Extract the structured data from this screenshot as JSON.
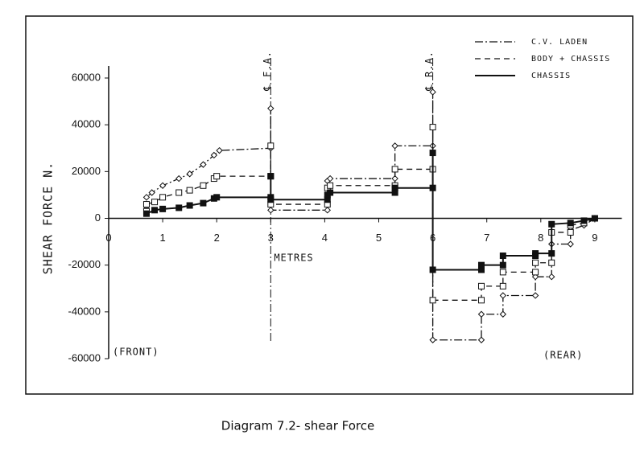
{
  "chart_data": {
    "type": "line",
    "title": "Diagram 7.2- shear Force",
    "xlabel": "METRES",
    "ylabel": "SHEAR FORCE N.",
    "annotations": [
      "℄ F.A.",
      "℄ R.A.",
      "(FRONT)",
      "(REAR)"
    ],
    "xlim": [
      0,
      9.5
    ],
    "ylim": [
      -60000,
      60000
    ],
    "xticks": [
      0,
      1,
      2,
      3,
      4,
      5,
      6,
      7,
      8,
      9
    ],
    "yticks": [
      -60000,
      -40000,
      -20000,
      0,
      20000,
      40000,
      60000
    ],
    "legend": "upper right",
    "series": [
      {
        "name": "C.V. LADEN",
        "color": "#111111",
        "dash": "dash-dot",
        "marker": "diamond",
        "x": [
          0.7,
          0.7,
          0.8,
          1.0,
          1.3,
          1.5,
          1.75,
          1.95,
          2.05,
          3.0,
          3.0,
          3.0,
          4.05,
          4.05,
          4.1,
          5.3,
          5.3,
          6.0,
          6.0,
          6.0,
          6.9,
          6.9,
          7.3,
          7.3,
          7.9,
          7.9,
          8.2,
          8.2,
          8.55,
          8.55,
          8.8,
          9.0
        ],
        "values": [
          4000,
          9000,
          11000,
          14000,
          17000,
          19000,
          23000,
          27000,
          29000,
          30000,
          47000,
          3500,
          3500,
          16000,
          17000,
          17000,
          31000,
          31000,
          54000,
          -52000,
          -52000,
          -41000,
          -41000,
          -33000,
          -33000,
          -25000,
          -25000,
          -11000,
          -11000,
          -5000,
          -3000,
          0
        ]
      },
      {
        "name": "BODY + CHASSIS",
        "color": "#111111",
        "dash": "dashed",
        "marker": "square-open",
        "x": [
          0.7,
          0.7,
          0.85,
          1.0,
          1.3,
          1.5,
          1.75,
          1.95,
          2.0,
          3.0,
          3.0,
          3.0,
          4.05,
          4.05,
          4.1,
          5.3,
          5.3,
          6.0,
          6.0,
          6.0,
          6.9,
          6.9,
          7.3,
          7.3,
          7.9,
          7.9,
          8.2,
          8.2,
          8.55,
          8.55,
          8.8,
          9.0
        ],
        "values": [
          3000,
          6000,
          7000,
          9000,
          11000,
          12000,
          14000,
          17000,
          18000,
          18000,
          31000,
          6000,
          6000,
          13000,
          14000,
          14000,
          21000,
          21000,
          39000,
          -35000,
          -35000,
          -29000,
          -29000,
          -23000,
          -23000,
          -19000,
          -19000,
          -6000,
          -6000,
          -3000,
          -2000,
          0
        ]
      },
      {
        "name": "CHASSIS",
        "color": "#111111",
        "dash": "solid",
        "marker": "square-filled",
        "x": [
          0.7,
          0.85,
          1.0,
          1.3,
          1.5,
          1.75,
          1.95,
          2.0,
          3.0,
          3.0,
          3.0,
          4.05,
          4.05,
          4.1,
          5.3,
          5.3,
          6.0,
          6.0,
          6.0,
          6.9,
          6.9,
          7.3,
          7.3,
          7.9,
          7.9,
          8.2,
          8.2,
          8.55,
          8.8,
          9.0
        ],
        "values": [
          2000,
          3500,
          4000,
          4500,
          5500,
          6500,
          8500,
          9000,
          9000,
          18000,
          8000,
          8000,
          10000,
          11000,
          11000,
          13000,
          13000,
          28000,
          -22000,
          -22000,
          -20000,
          -20000,
          -16000,
          -16000,
          -15000,
          -15000,
          -2500,
          -2000,
          -1000,
          0
        ]
      }
    ]
  }
}
